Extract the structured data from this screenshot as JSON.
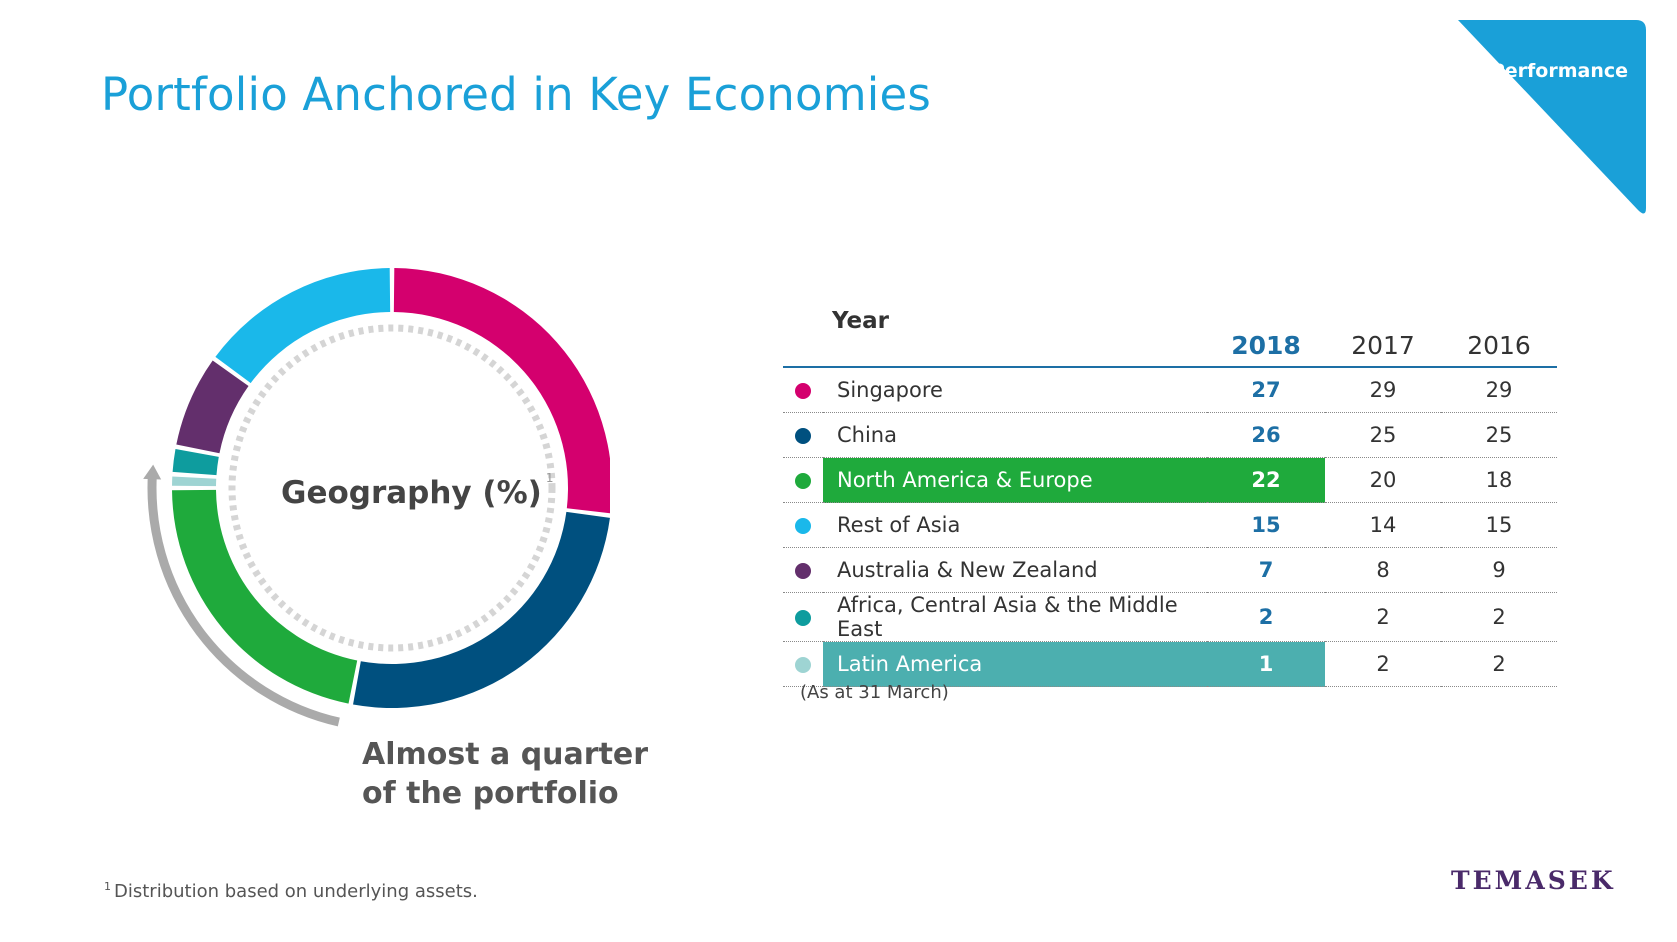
{
  "header": {
    "title": "Portfolio Anchored in Key Economies",
    "badge": "Performance"
  },
  "center_label": "Geography (%)",
  "center_label_footnote_mark": "1",
  "callout": {
    "line1": "Almost a quarter",
    "line2": "of the portfolio"
  },
  "colors": {
    "accent": "#1aa0d8",
    "bracket": "#aaaaaa",
    "singapore": "#d4006e",
    "china": "#00507f",
    "north_america_europe": "#1faa3c",
    "rest_of_asia": "#1ab8ea",
    "australia_nz": "#632f6c",
    "africa_cam": "#0e9c9e",
    "latin_america": "#9ed4d3"
  },
  "table": {
    "year_label": "Year",
    "years": [
      "2018",
      "2017",
      "2016"
    ],
    "rows": [
      {
        "name": "Singapore",
        "v2018": "27",
        "v2017": "29",
        "v2016": "29",
        "color": "#d4006e",
        "highlight": ""
      },
      {
        "name": "China",
        "v2018": "26",
        "v2017": "25",
        "v2016": "25",
        "color": "#00507f",
        "highlight": ""
      },
      {
        "name": "North America & Europe",
        "v2018": "22",
        "v2017": "20",
        "v2016": "18",
        "color": "#1faa3c",
        "highlight": "green"
      },
      {
        "name": "Rest of Asia",
        "v2018": "15",
        "v2017": "14",
        "v2016": "15",
        "color": "#1ab8ea",
        "highlight": ""
      },
      {
        "name": "Australia & New Zealand",
        "v2018": "7",
        "v2017": "8",
        "v2016": "9",
        "color": "#632f6c",
        "highlight": ""
      },
      {
        "name": "Africa, Central Asia & the Middle East",
        "v2018": "2",
        "v2017": "2",
        "v2016": "2",
        "color": "#0e9c9e",
        "highlight": ""
      },
      {
        "name": "Latin America",
        "v2018": "1",
        "v2017": "2",
        "v2016": "2",
        "color": "#9ed4d3",
        "highlight": "teal"
      }
    ],
    "note": "(As at 31 March)"
  },
  "chart_data": {
    "type": "pie",
    "title": "Geography (%)",
    "categories": [
      "Singapore",
      "China",
      "North America & Europe",
      "Latin America",
      "Africa, Central Asia & the Middle East",
      "Australia & New Zealand",
      "Rest of Asia"
    ],
    "values": [
      27,
      26,
      22,
      1,
      2,
      7,
      15
    ],
    "colors": [
      "#d4006e",
      "#00507f",
      "#1faa3c",
      "#9ed4d3",
      "#0e9c9e",
      "#632f6c",
      "#1ab8ea"
    ],
    "donut": true,
    "highlight": {
      "categories": [
        "North America & Europe",
        "Latin America"
      ],
      "label": "Almost a quarter of the portfolio"
    }
  },
  "footnote": {
    "mark": "1",
    "text": "Distribution based on underlying assets."
  },
  "logo": "TEMASEK"
}
